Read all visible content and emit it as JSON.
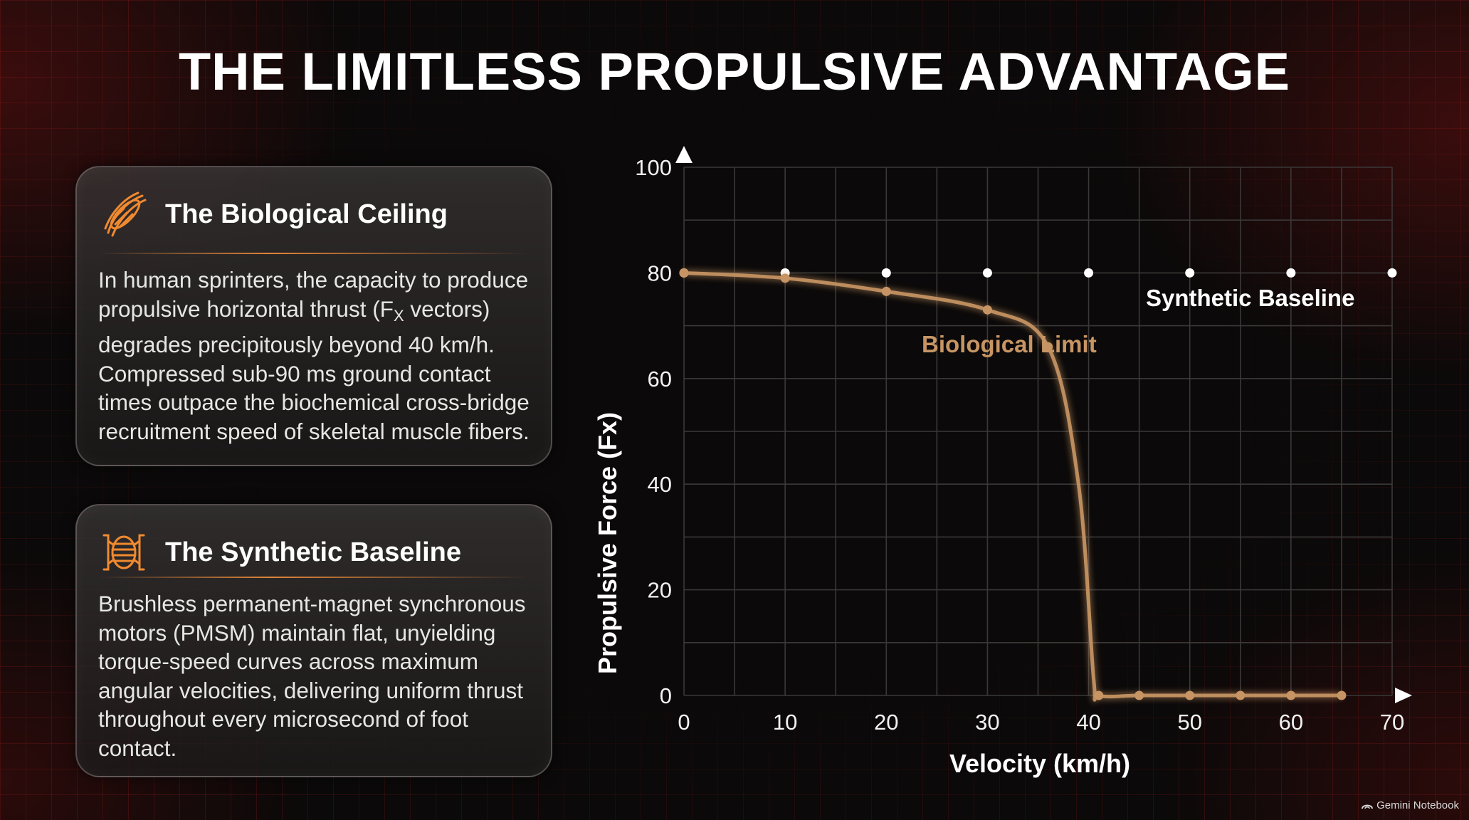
{
  "title": "THE LIMITLESS PROPULSIVE ADVANTAGE",
  "card_biological": {
    "title": "The Biological Ceiling",
    "icon": "muscle-fiber-icon",
    "text_before_sub": "In human sprinters, the capacity to produce propulsive horizontal thrust (F",
    "subscript": "X",
    "text_after_sub": " vectors) degrades precipitously beyond 40 km/h. Compressed sub-90 ms ground contact times outpace the biochemical cross-bridge recruitment speed of skeletal muscle fibers."
  },
  "card_synthetic": {
    "title": "The Synthetic Baseline",
    "icon": "motor-coil-icon",
    "text": "Brushless permanent-magnet synchronous motors (PMSM) maintain flat, unyielding torque-speed curves across maximum angular velocities, delivering uniform thrust throughout every microsecond of foot contact."
  },
  "colors": {
    "accent_orange": "#f08a30",
    "biological_line": "#c79564",
    "synthetic_line": "#ffffff",
    "background": "#0b0909",
    "grid_red": "#be1e1e"
  },
  "watermark": "Gemini Notebook",
  "chart_data": {
    "type": "line",
    "xlabel": "Velocity (km/h)",
    "ylabel": "Propulsive Force (Fx)",
    "xlim": [
      0,
      70
    ],
    "ylim": [
      0,
      100
    ],
    "xticks": [
      0,
      10,
      20,
      30,
      40,
      50,
      60,
      70
    ],
    "yticks": [
      0,
      20,
      40,
      60,
      80,
      100
    ],
    "grid": true,
    "series": [
      {
        "name": "Synthetic Baseline",
        "color": "#ffffff",
        "x": [
          0,
          10,
          20,
          30,
          40,
          50,
          60,
          70
        ],
        "y": [
          80,
          80,
          80,
          80,
          80,
          80,
          80,
          80
        ]
      },
      {
        "name": "Biological Limit",
        "color": "#c79564",
        "x": [
          0,
          10,
          20,
          30,
          36,
          39,
          40.5,
          41,
          45,
          50,
          55,
          60,
          65
        ],
        "y": [
          80,
          79,
          76.5,
          73,
          66,
          40,
          3,
          0,
          0,
          0,
          0,
          0,
          0
        ],
        "markers_x": [
          0,
          10,
          20,
          30,
          36,
          41,
          45,
          50,
          55,
          60,
          65
        ]
      }
    ]
  }
}
